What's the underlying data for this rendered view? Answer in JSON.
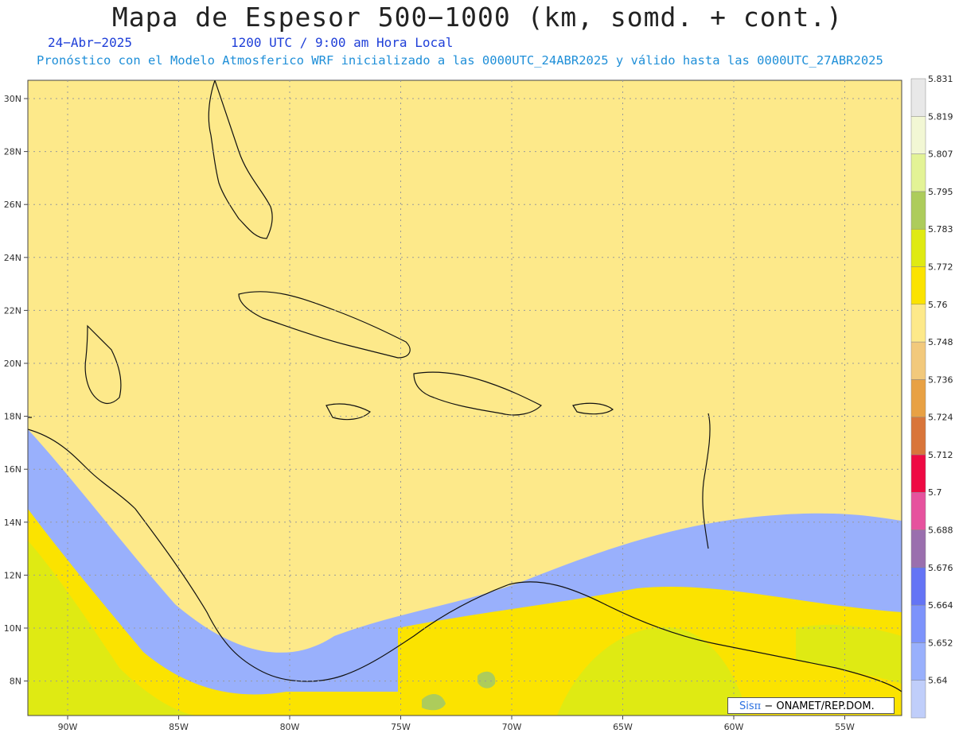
{
  "header": {
    "title": "Mapa de Espesor 500−1000 (km, somd. + cont.)",
    "date": "24−Abr−2025",
    "utc_line": "1200 UTC / 9:00 am Hora Local",
    "description": "Pronóstico con el Modelo Atmosferico WRF inicializado a las 0000UTC_24ABR2025 y válido hasta las  0000UTC_27ABR2025"
  },
  "map": {
    "lat_labels": [
      "30N",
      "28N",
      "26N",
      "24N",
      "22N",
      "20N",
      "18N",
      "16N",
      "14N",
      "12N",
      "10N",
      "8N"
    ],
    "lon_labels": [
      "90W",
      "85W",
      "80W",
      "75W",
      "70W",
      "65W",
      "60W",
      "55W"
    ]
  },
  "colorbar": {
    "colors": [
      "#c0cefa",
      "#99b0fc",
      "#7d93fb",
      "#6474f5",
      "#9a6fae",
      "#e6529e",
      "#ee0a43",
      "#d9753a",
      "#e8a144",
      "#f2c97c",
      "#fde98a",
      "#fbe300",
      "#dfea13",
      "#adcc5b",
      "#e3f396",
      "#f2f7d4",
      "#e8e8e8"
    ],
    "labels": [
      "5.64",
      "5.652",
      "5.664",
      "5.676",
      "5.688",
      "5.7",
      "5.712",
      "5.724",
      "5.736",
      "5.748",
      "5.76",
      "5.772",
      "5.783",
      "5.795",
      "5.807",
      "5.819",
      "5.831"
    ]
  },
  "credit": {
    "sis": "Sis",
    "pi": "π",
    "rest": "− ONAMET/REP.DOM."
  }
}
